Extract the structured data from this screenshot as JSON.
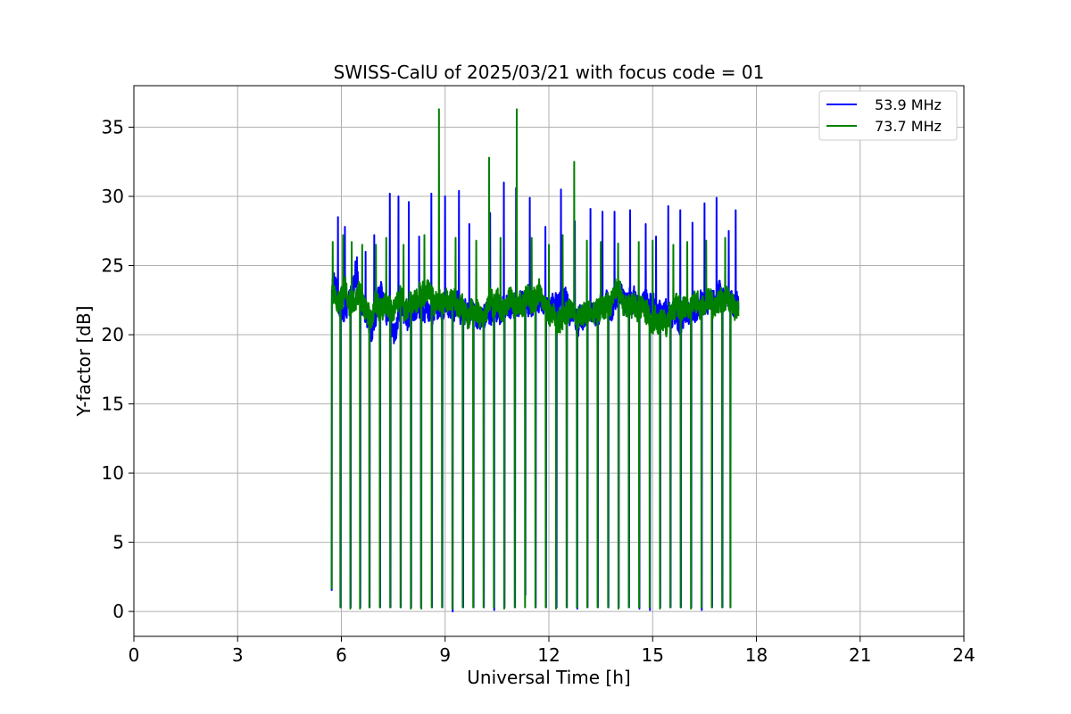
{
  "chart_data": {
    "type": "line",
    "title": "SWISS-CalU of 2025/03/21 with focus code = 01",
    "xlabel": "Universal Time [h]",
    "ylabel": "Y-factor [dB]",
    "xlim": [
      0,
      24
    ],
    "ylim": [
      -1.8,
      38.0
    ],
    "xticks": [
      0,
      3,
      6,
      9,
      12,
      15,
      18,
      21,
      24
    ],
    "yticks": [
      0,
      5,
      10,
      15,
      20,
      25,
      30,
      35
    ],
    "grid": true,
    "legend_position": "top-right",
    "data_range_hours": [
      5.72,
      17.48
    ],
    "baseline_db": 22.0,
    "series": [
      {
        "name": "53.9 MHz",
        "color": "#0000ff",
        "dip_times": [
          5.72,
          5.98,
          6.27,
          6.55,
          6.82,
          7.12,
          7.42,
          7.72,
          8.02,
          8.3,
          8.62,
          8.92,
          9.22,
          9.52,
          9.82,
          10.12,
          10.42,
          10.72,
          11.02,
          11.32,
          11.62,
          11.92,
          12.22,
          12.52,
          12.82,
          13.12,
          13.42,
          13.72,
          14.02,
          14.32,
          14.62,
          14.92,
          15.22,
          15.52,
          15.82,
          16.12,
          16.42,
          16.72,
          17.02,
          17.25
        ],
        "dip_values": [
          1.5,
          0.3,
          0.3,
          0.3,
          0.3,
          0.3,
          0.3,
          0.3,
          0.3,
          0.3,
          0.3,
          0.3,
          0.0,
          0.3,
          0.3,
          0.3,
          0.1,
          0.3,
          0.3,
          1.2,
          0.3,
          0.3,
          0.3,
          0.3,
          0.2,
          0.3,
          0.3,
          0.3,
          0.3,
          0.3,
          0.2,
          0.1,
          0.3,
          0.3,
          0.3,
          0.3,
          0.1,
          0.3,
          0.3,
          0.3
        ],
        "spike_times": [
          5.9,
          6.1,
          6.45,
          6.7,
          6.95,
          7.4,
          7.65,
          7.95,
          8.25,
          8.6,
          9.0,
          9.4,
          9.7,
          10.3,
          10.7,
          11.05,
          11.45,
          11.9,
          12.35,
          12.75,
          13.2,
          13.55,
          13.9,
          14.35,
          14.8,
          15.1,
          15.45,
          15.8,
          16.15,
          16.5,
          16.85,
          17.2,
          17.4
        ],
        "spike_values": [
          28.5,
          27.8,
          25.6,
          26.0,
          27.2,
          30.2,
          30.0,
          29.6,
          27.1,
          30.2,
          30.0,
          30.4,
          28.0,
          28.8,
          31.0,
          30.6,
          29.9,
          27.8,
          30.5,
          28.2,
          29.1,
          28.9,
          28.9,
          29.0,
          28.0,
          27.1,
          29.3,
          29.0,
          28.1,
          29.5,
          29.9,
          27.5,
          29.0
        ]
      },
      {
        "name": "73.7 MHz",
        "color": "#008000",
        "dip_times": [
          5.72,
          5.97,
          6.26,
          6.54,
          6.81,
          7.11,
          7.41,
          7.71,
          8.01,
          8.31,
          8.61,
          8.91,
          9.21,
          9.51,
          9.81,
          10.11,
          10.41,
          10.71,
          11.01,
          11.31,
          11.61,
          11.91,
          12.21,
          12.51,
          12.81,
          13.11,
          13.41,
          13.71,
          14.01,
          14.31,
          14.61,
          14.91,
          15.21,
          15.51,
          15.81,
          16.11,
          16.41,
          16.71,
          17.01,
          17.25
        ],
        "dip_values": [
          1.6,
          0.3,
          0.2,
          0.2,
          0.3,
          0.3,
          0.3,
          0.3,
          0.2,
          0.2,
          0.3,
          0.3,
          0.2,
          0.3,
          0.3,
          0.3,
          0.3,
          0.2,
          0.3,
          0.3,
          0.3,
          0.3,
          0.2,
          0.3,
          0.3,
          0.3,
          0.3,
          0.3,
          0.2,
          0.3,
          0.3,
          0.3,
          0.2,
          0.3,
          0.3,
          0.2,
          0.3,
          0.3,
          0.3,
          0.3
        ],
        "spike_times": [
          5.75,
          6.05,
          6.3,
          6.6,
          7.0,
          7.3,
          7.8,
          8.4,
          8.82,
          9.3,
          9.9,
          10.27,
          10.6,
          11.07,
          11.5,
          12.0,
          12.4,
          12.73,
          13.1,
          13.5,
          14.0,
          14.6,
          15.0,
          15.6,
          16.0,
          16.55,
          17.1
        ],
        "spike_values": [
          26.7,
          27.2,
          26.7,
          26.5,
          26.5,
          27.0,
          26.5,
          27.2,
          36.3,
          27.0,
          26.8,
          32.8,
          27.0,
          36.3,
          27.0,
          26.5,
          27.2,
          32.5,
          26.8,
          26.7,
          26.6,
          26.7,
          26.8,
          26.5,
          26.7,
          26.8,
          27.0
        ]
      }
    ]
  }
}
